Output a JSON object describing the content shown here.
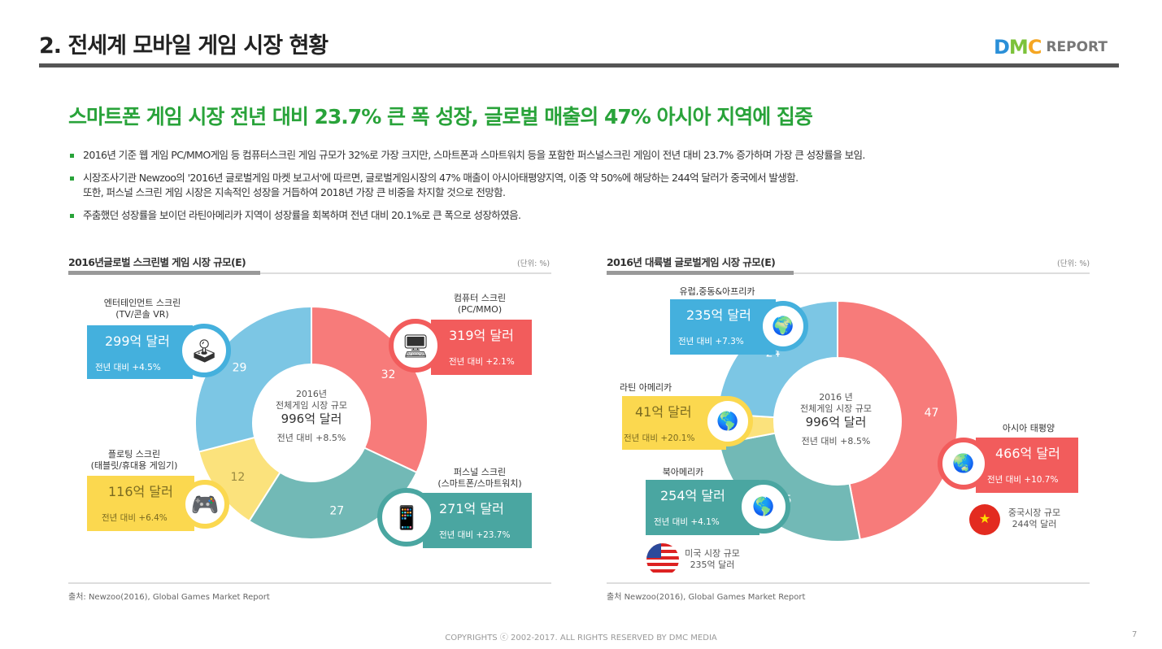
{
  "header": {
    "title": "2. 전세계 모바일 게임 시장 현황",
    "logo_text": "DMC",
    "logo_report": "REPORT"
  },
  "headline": "스마트폰 게임 시장 전년 대비 23.7% 큰 폭 성장, 글로벌 매출의 47% 아시아 지역에 집중",
  "bullets": [
    "2016년 기준 웹 게임 PC/MMO게임 등 컴퓨터스크린 게임 규모가 32%로 가장 크지만, 스마트폰과 스마트워치 등을 포함한 퍼스널스크린 게임이 전년 대비 23.7% 증가하며 가장 큰 성장률을 보임.",
    "시장조사기관 Newzoo의 '2016년 글로벌게임 마켓 보고서'에 따르면, 글로벌게임시장의 47% 매출이 아시아태평양지역, 이중 약 50%에 해당하는 244억 달러가 중국에서 발생함.",
    "또한, 퍼스널 스크린 게임 시장은 지속적인 성장을 거듭하여 2018년 가장 큰 비중을 차지할 것으로 전망함.",
    "주춤했던 성장률을 보이던 라틴아메리카 지역이 성장률을 회복하며 전년 대비 20.1%로 큰 폭으로 성장하였음."
  ],
  "colors": {
    "red": "#f77b7a",
    "teal": "#72b9b6",
    "yellow": "#fbe27c",
    "blue": "#7cc6e4",
    "red_box": "#f25c5c",
    "teal_box": "#4aa6a1",
    "yellow_box": "#fbd84f",
    "blue_box": "#44b0dd",
    "accent": "#29a33a"
  },
  "chart_data": [
    {
      "type": "pie",
      "donut": true,
      "title": "2016년글로벌 스크린별 게임 시장 규모(E)",
      "unit": "(단위: %)",
      "source": "출처: Newzoo(2016), Global Games Market Report",
      "center": {
        "line1": "2016년",
        "line2": "전체게임 시장 규모",
        "total": "996억 달러",
        "growth": "전년 대비 +8.5%"
      },
      "slices": [
        {
          "label": "32",
          "value": 32,
          "color": "#f77b7a",
          "name": "컴퓨터 스크린",
          "sub": "(PC/MMO)",
          "amount": "319억 달러",
          "growth": "전년 대비 +2.1%",
          "icon": "computer-icon"
        },
        {
          "label": "27",
          "value": 27,
          "color": "#72b9b6",
          "name": "퍼스널 스크린",
          "sub": "(스마트폰/스마트워치)",
          "amount": "271억 달러",
          "growth": "전년 대비 +23.7%",
          "icon": "smartphone-icon"
        },
        {
          "label": "12",
          "value": 12,
          "color": "#fbe27c",
          "name": "플로팅 스크린",
          "sub": "(태블릿/휴대용 게임기)",
          "amount": "116억 달러",
          "growth": "전년 대비 +6.4%",
          "icon": "handheld-console-icon"
        },
        {
          "label": "29",
          "value": 29,
          "color": "#7cc6e4",
          "name": "엔터테인먼트 스크린",
          "sub": "(TV/콘솔 VR)",
          "amount": "299억 달러",
          "growth": "전년 대비 +4.5%",
          "icon": "game-console-icon"
        }
      ]
    },
    {
      "type": "pie",
      "donut": true,
      "title": "2016년 대륙별 글로벌게임 시장 규모(E)",
      "unit": "(단위: %)",
      "source": "출처 Newzoo(2016), Global Games Market Report",
      "center": {
        "line1": "2016 년",
        "line2": "전체게임 시장 규모",
        "total": "996억 달러",
        "growth": "전년 대비 +8.5%"
      },
      "slices": [
        {
          "label": "47",
          "value": 47,
          "color": "#f77b7a",
          "name": "아시아 태평양",
          "amount": "466억 달러",
          "growth": "전년 대비 +10.7%",
          "icon": "asia-map-icon"
        },
        {
          "label": "25",
          "value": 25,
          "color": "#72b9b6",
          "name": "북아메리카",
          "amount": "254억 달러",
          "growth": "전년 대비 +4.1%",
          "icon": "north-america-map-icon"
        },
        {
          "label": "4",
          "value": 4,
          "color": "#fbe27c",
          "name": "라틴 아메리카",
          "amount": "41억 달러",
          "growth": "전년 대비 +20.1%",
          "icon": "latin-america-map-icon"
        },
        {
          "label": "24",
          "value": 24,
          "color": "#7cc6e4",
          "name": "유럽,중동&아프리카",
          "amount": "235억 달러",
          "growth": "전년 대비 +7.3%",
          "icon": "europe-map-icon"
        }
      ],
      "notes": {
        "china_l1": "중국시장 규모",
        "china_l2": "244억 달러",
        "us_l1": "미국 시장 규모",
        "us_l2": "235억 달러"
      }
    }
  ],
  "footer": {
    "copyright": "COPYRIGHTS ⓒ 2002-2017. ALL RIGHTS RESERVED BY DMC MEDIA",
    "page": "7"
  }
}
